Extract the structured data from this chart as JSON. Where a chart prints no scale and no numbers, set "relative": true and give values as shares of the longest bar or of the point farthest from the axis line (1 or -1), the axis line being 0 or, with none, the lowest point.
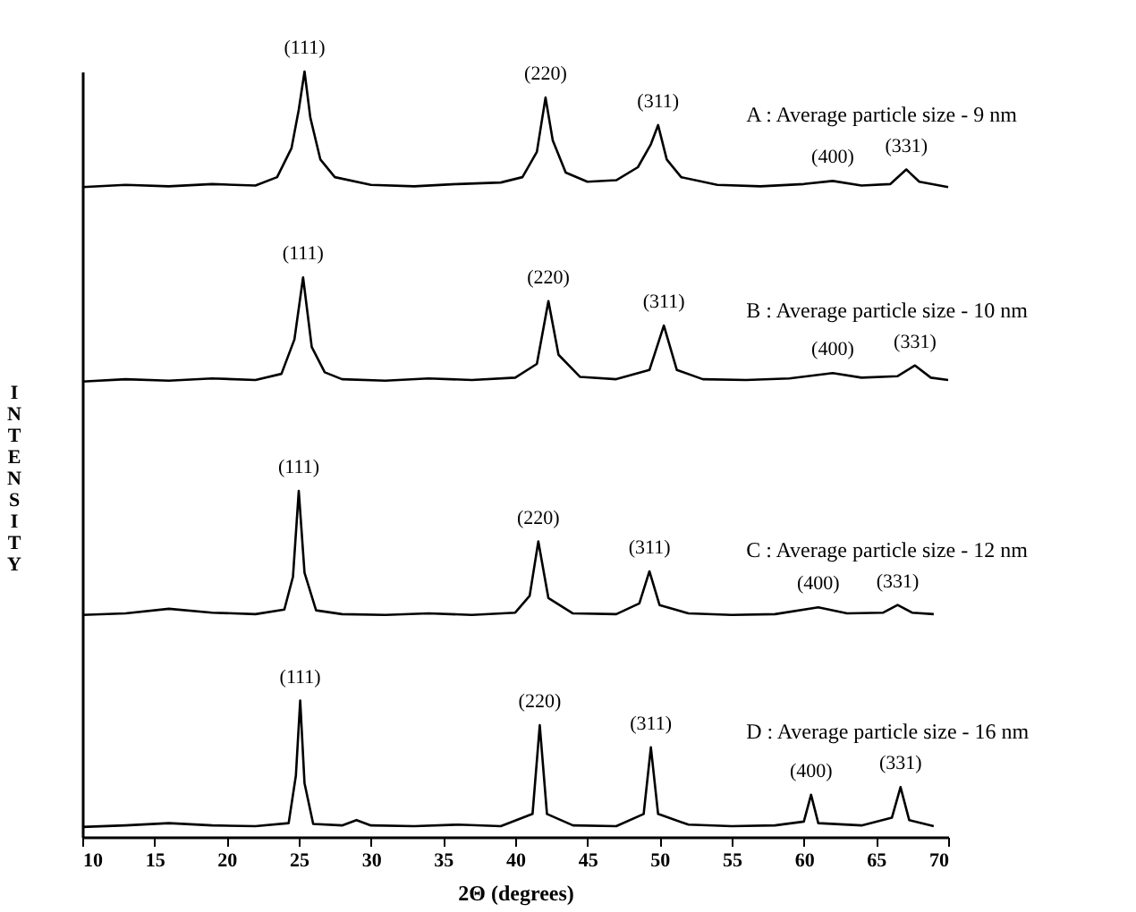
{
  "chart_data": {
    "type": "line",
    "relative": true,
    "xlabel": "2Θ (degrees)",
    "ylabel": "INTENSITY",
    "xlim": [
      10,
      70
    ],
    "xticks": [
      10,
      15,
      20,
      25,
      30,
      35,
      40,
      45,
      50,
      55,
      60,
      65,
      70
    ],
    "grid": false,
    "series": [
      {
        "name": "A :  Average particle size -  9 nm",
        "color": "#000000",
        "x": [
          10,
          13,
          16,
          19,
          22,
          23.5,
          24.5,
          25,
          25.4,
          25.8,
          26.5,
          27.5,
          30,
          33,
          36,
          39,
          40.5,
          41.5,
          42.1,
          42.6,
          43.5,
          45,
          47,
          48.5,
          49.4,
          49.9,
          50.5,
          51.5,
          54,
          57,
          60,
          62,
          64,
          66,
          67.1,
          68,
          70
        ],
        "values": [
          0.849,
          0.852,
          0.85,
          0.853,
          0.851,
          0.862,
          0.9,
          0.95,
          1,
          0.94,
          0.885,
          0.862,
          0.852,
          0.85,
          0.853,
          0.855,
          0.862,
          0.895,
          0.966,
          0.91,
          0.868,
          0.856,
          0.858,
          0.875,
          0.905,
          0.93,
          0.885,
          0.862,
          0.852,
          0.85,
          0.853,
          0.857,
          0.851,
          0.853,
          0.872,
          0.856,
          0.849
        ]
      },
      {
        "name": "B :  Average particle size -  10 nm",
        "color": "#000000",
        "x": [
          10,
          13,
          16,
          19,
          22,
          23.8,
          24.7,
          25.3,
          25.9,
          26.8,
          28,
          31,
          34,
          37,
          40,
          41.5,
          42.3,
          43,
          44.5,
          47,
          49.3,
          50.3,
          51.2,
          53,
          56,
          59,
          62,
          64,
          66.5,
          67.7,
          68.8,
          70
        ],
        "values": [
          0.595,
          0.598,
          0.596,
          0.599,
          0.597,
          0.605,
          0.65,
          0.731,
          0.64,
          0.607,
          0.598,
          0.596,
          0.599,
          0.597,
          0.6,
          0.618,
          0.7,
          0.63,
          0.601,
          0.598,
          0.61,
          0.668,
          0.61,
          0.598,
          0.597,
          0.599,
          0.606,
          0.6,
          0.602,
          0.616,
          0.6,
          0.597
        ]
      },
      {
        "name": "C :  Average particle size -  12 nm",
        "color": "#000000",
        "x": [
          10,
          13,
          16,
          19,
          22,
          24,
          24.6,
          25,
          25.4,
          26.2,
          28,
          31,
          34,
          37,
          40,
          41,
          41.6,
          42.3,
          44,
          47,
          48.6,
          49.3,
          50,
          52,
          55,
          58,
          61,
          63,
          65.5,
          66.5,
          67.5,
          69
        ],
        "values": [
          0.29,
          0.292,
          0.298,
          0.293,
          0.291,
          0.297,
          0.34,
          0.452,
          0.345,
          0.296,
          0.291,
          0.29,
          0.292,
          0.29,
          0.293,
          0.315,
          0.386,
          0.312,
          0.292,
          0.291,
          0.305,
          0.347,
          0.303,
          0.292,
          0.29,
          0.291,
          0.3,
          0.292,
          0.293,
          0.303,
          0.293,
          0.291
        ]
      },
      {
        "name": "D :  Average particle size -  16 nm",
        "color": "#000000",
        "x": [
          10,
          13,
          16,
          19,
          22,
          24.3,
          24.8,
          25.1,
          25.4,
          26,
          28,
          29,
          30,
          33,
          36,
          39,
          41.2,
          41.7,
          42.2,
          44,
          47,
          48.9,
          49.4,
          49.9,
          52,
          55,
          58,
          60,
          60.5,
          61,
          64,
          66.1,
          66.7,
          67.3,
          69
        ],
        "values": [
          0.013,
          0.015,
          0.018,
          0.015,
          0.014,
          0.018,
          0.08,
          0.178,
          0.07,
          0.017,
          0.015,
          0.022,
          0.015,
          0.014,
          0.016,
          0.014,
          0.03,
          0.146,
          0.03,
          0.015,
          0.014,
          0.03,
          0.117,
          0.03,
          0.016,
          0.014,
          0.015,
          0.02,
          0.055,
          0.018,
          0.015,
          0.025,
          0.065,
          0.022,
          0.014
        ]
      }
    ],
    "annotations": [
      {
        "text": "(111)",
        "x": 25.4,
        "y": 1
      },
      {
        "text": "(220)",
        "x": 42.1,
        "y": 0.966
      },
      {
        "text": "(311)",
        "x": 49.9,
        "y": 0.93
      },
      {
        "text": "(400)",
        "x": 62,
        "y": 0.857
      },
      {
        "text": "(331)",
        "x": 67.1,
        "y": 0.872
      },
      {
        "text": "(111)",
        "x": 25.3,
        "y": 0.731
      },
      {
        "text": "(220)",
        "x": 42.3,
        "y": 0.7
      },
      {
        "text": "(311)",
        "x": 50.3,
        "y": 0.668
      },
      {
        "text": "(400)",
        "x": 62,
        "y": 0.606
      },
      {
        "text": "(331)",
        "x": 67.7,
        "y": 0.616
      },
      {
        "text": "(111)",
        "x": 25,
        "y": 0.452
      },
      {
        "text": "(220)",
        "x": 41.6,
        "y": 0.386
      },
      {
        "text": "(311)",
        "x": 49.3,
        "y": 0.347
      },
      {
        "text": "(400)",
        "x": 61,
        "y": 0.3
      },
      {
        "text": "(331)",
        "x": 66.5,
        "y": 0.303
      },
      {
        "text": "(111)",
        "x": 25.1,
        "y": 0.178
      },
      {
        "text": "(220)",
        "x": 41.7,
        "y": 0.146
      },
      {
        "text": "(311)",
        "x": 49.4,
        "y": 0.117
      },
      {
        "text": "(400)",
        "x": 60.5,
        "y": 0.055
      },
      {
        "text": "(331)",
        "x": 66.7,
        "y": 0.065
      }
    ]
  }
}
